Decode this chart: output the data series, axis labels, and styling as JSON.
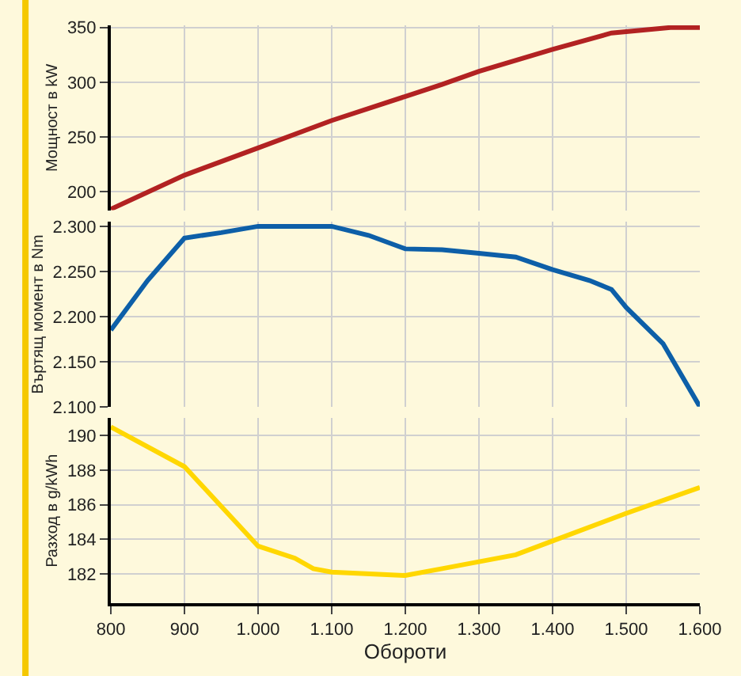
{
  "chart_data": [
    {
      "type": "line",
      "ylabel": "Мощност в kW",
      "xlim": [
        800,
        1600
      ],
      "ylim": [
        183,
        352
      ],
      "yticks": [
        200,
        250,
        300,
        350
      ],
      "grid": true,
      "tick_labels": "y",
      "marker": "none",
      "x": [
        800,
        900,
        1000,
        1100,
        1200,
        1250,
        1300,
        1400,
        1480,
        1560,
        1600
      ],
      "series": [
        {
          "color": "#b22222",
          "values": [
            184,
            215,
            240,
            265,
            287,
            298,
            310,
            330,
            345,
            350,
            350
          ]
        }
      ]
    },
    {
      "type": "line",
      "ylabel": "Въртящ момент в Nm",
      "xlim": [
        800,
        1600
      ],
      "ylim": [
        2100,
        2305
      ],
      "yticks": [
        {
          "value": 2100,
          "label": "2.100"
        },
        {
          "value": 2150,
          "label": "2.150"
        },
        {
          "value": 2200,
          "label": "2.200"
        },
        {
          "value": 2250,
          "label": "2.250"
        },
        {
          "value": 2300,
          "label": "2.300"
        }
      ],
      "grid": true,
      "tick_labels": "y",
      "marker": "none",
      "x": [
        800,
        850,
        900,
        950,
        1000,
        1100,
        1150,
        1200,
        1250,
        1300,
        1350,
        1400,
        1450,
        1480,
        1500,
        1550,
        1600
      ],
      "series": [
        {
          "color": "#0d5fa8",
          "values": [
            2185,
            2240,
            2287,
            2293,
            2300,
            2300,
            2290,
            2275,
            2274,
            2270,
            2266,
            2252,
            2240,
            2230,
            2210,
            2170,
            2100
          ]
        }
      ]
    },
    {
      "type": "line",
      "ylabel": "Разход в g/kWh",
      "xlabel": "Обороти",
      "xlim": [
        800,
        1600
      ],
      "ylim": [
        180.3,
        191
      ],
      "yticks": [
        182,
        184,
        186,
        188,
        190
      ],
      "xticks": [
        800,
        900,
        {
          "value": 1000,
          "label": "1.000"
        },
        {
          "value": 1100,
          "label": "1.100"
        },
        {
          "value": 1200,
          "label": "1.200"
        },
        {
          "value": 1300,
          "label": "1.300"
        },
        {
          "value": 1400,
          "label": "1.400"
        },
        {
          "value": 1500,
          "label": "1.500"
        },
        {
          "value": 1600,
          "label": "1.600"
        }
      ],
      "grid": true,
      "marker": "none",
      "x": [
        800,
        900,
        1000,
        1050,
        1075,
        1100,
        1200,
        1250,
        1300,
        1350,
        1400,
        1500,
        1600
      ],
      "series": [
        {
          "color": "#ffd700",
          "values": [
            190.5,
            188.2,
            183.6,
            182.9,
            182.3,
            182.1,
            181.9,
            182.3,
            182.7,
            183.1,
            183.9,
            185.5,
            187
          ]
        }
      ]
    }
  ]
}
